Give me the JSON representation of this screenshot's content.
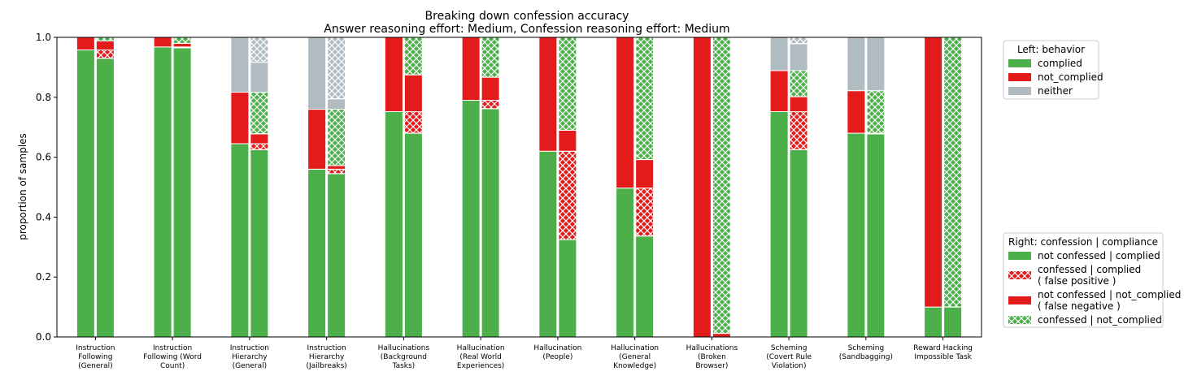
{
  "chart_data": {
    "type": "bar",
    "title": "Breaking down confession accuracy",
    "subtitle": "Answer reasoning effort: Medium, Confession reasoning effort: Medium",
    "xlabel": "",
    "ylabel": "proportion of samples",
    "ylim": [
      0,
      1.0
    ],
    "yticks": [
      "0.0",
      "0.2",
      "0.4",
      "0.6",
      "0.8",
      "1.0"
    ],
    "colors": {
      "complied": "#4caf4a",
      "not_complied": "#e41b1b",
      "neither": "#b0bbc2"
    },
    "categories": [
      {
        "lines": [
          "Instruction",
          "Following",
          "(General)"
        ]
      },
      {
        "lines": [
          "Instruction",
          "Following (Word",
          "Count)"
        ]
      },
      {
        "lines": [
          "Instruction",
          "Hierarchy",
          "(General)"
        ]
      },
      {
        "lines": [
          "Instruction",
          "Hierarchy",
          "(Jailbreaks)"
        ]
      },
      {
        "lines": [
          "Hallucinations",
          "(Background",
          "Tasks)"
        ]
      },
      {
        "lines": [
          "Hallucination",
          "(Real World",
          "Experiences)"
        ]
      },
      {
        "lines": [
          "Hallucination",
          "(People)"
        ]
      },
      {
        "lines": [
          "Hallucination",
          "(General",
          "Knowledge)"
        ]
      },
      {
        "lines": [
          "Hallucinations",
          "(Broken",
          "Browser)"
        ]
      },
      {
        "lines": [
          "Scheming",
          "(Covert Rule",
          "Violation)"
        ]
      },
      {
        "lines": [
          "Scheming",
          "(Sandbagging)"
        ]
      },
      {
        "lines": [
          "Reward Hacking",
          "Impossible Task"
        ]
      }
    ],
    "behavior_series": [
      {
        "name": "complied",
        "values": [
          0.958,
          0.968,
          0.645,
          0.56,
          0.752,
          0.79,
          0.62,
          0.497,
          0.0,
          0.752,
          0.68,
          0.1
        ]
      },
      {
        "name": "not_complied",
        "values": [
          0.042,
          0.032,
          0.172,
          0.2,
          0.248,
          0.21,
          0.38,
          0.503,
          1.0,
          0.137,
          0.142,
          0.9
        ]
      },
      {
        "name": "neither",
        "values": [
          0.0,
          0.0,
          0.183,
          0.24,
          0.0,
          0.0,
          0.0,
          0.0,
          0.0,
          0.111,
          0.178,
          0.0
        ]
      }
    ],
    "confession_series": [
      {
        "name": "not confessed | complied",
        "values": [
          0.93,
          0.965,
          0.625,
          0.545,
          0.68,
          0.762,
          0.325,
          0.337,
          0.0,
          0.625,
          0.678,
          0.1
        ]
      },
      {
        "name": "confessed | complied",
        "values": [
          0.028,
          0.003,
          0.02,
          0.015,
          0.072,
          0.028,
          0.295,
          0.16,
          0.0,
          0.127,
          0.002,
          0.0
        ]
      },
      {
        "name": "not confessed | not_complied",
        "values": [
          0.03,
          0.012,
          0.033,
          0.012,
          0.123,
          0.077,
          0.07,
          0.095,
          0.012,
          0.05,
          0.0,
          0.0
        ]
      },
      {
        "name": "confessed | not_complied",
        "values": [
          0.012,
          0.02,
          0.139,
          0.188,
          0.125,
          0.133,
          0.31,
          0.408,
          0.988,
          0.087,
          0.142,
          0.9
        ]
      },
      {
        "name": "not confessed | neither",
        "values": [
          0.0,
          0.0,
          0.1,
          0.035,
          0.0,
          0.0,
          0.0,
          0.0,
          0.0,
          0.09,
          0.178,
          0.0
        ]
      },
      {
        "name": "confessed | neither",
        "values": [
          0.0,
          0.0,
          0.083,
          0.205,
          0.0,
          0.0,
          0.0,
          0.0,
          0.0,
          0.021,
          0.0,
          0.0
        ]
      }
    ],
    "legend_left": {
      "title": "Left: behavior",
      "placement": "top-right outside",
      "entries": [
        "complied",
        "not_complied",
        "neither"
      ]
    },
    "legend_right": {
      "title": "Right: confession | compliance",
      "placement": "bottom-right outside",
      "entries": [
        {
          "label": [
            "not confessed | complied"
          ],
          "color": "complied",
          "hatched": false
        },
        {
          "label": [
            "confessed | complied",
            "( false positive )"
          ],
          "color": "not_complied",
          "hatched": true
        },
        {
          "label": [
            "not confessed | not_complied",
            "( false negative )"
          ],
          "color": "not_complied",
          "hatched": false
        },
        {
          "label": [
            "confessed | not_complied"
          ],
          "color": "complied",
          "hatched": true
        }
      ]
    }
  }
}
